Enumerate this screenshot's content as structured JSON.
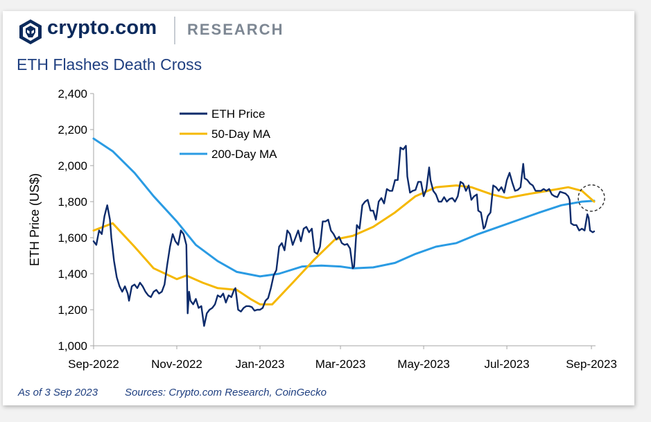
{
  "header": {
    "brand": "crypto.com",
    "section": "RESEARCH",
    "logo_icon": "crypto-com-lion-shield-icon"
  },
  "colors": {
    "eth_price": "#0d2b6b",
    "ma50": "#f5b800",
    "ma200": "#2a9be3",
    "axis": "#a6a6a6",
    "title": "#1f3f80"
  },
  "footer": {
    "as_of": "As of 3 Sep 2023",
    "sources": "Sources: Crypto.com Research, CoinGecko"
  },
  "chart_data": {
    "type": "line",
    "title": "ETH Flashes Death Cross",
    "ylabel": "ETH Price (US$)",
    "xlabel": "",
    "ylim": [
      1000,
      2400
    ],
    "yticks": [
      "1,000",
      "1,200",
      "1,400",
      "1,600",
      "1,800",
      "2,000",
      "2,200",
      "2,400"
    ],
    "xlim": [
      "2022-09-01",
      "2023-09-03"
    ],
    "xticks": [
      {
        "date": "2022-09-01",
        "label": "Sep-2022"
      },
      {
        "date": "2022-11-01",
        "label": "Nov-2022"
      },
      {
        "date": "2023-01-01",
        "label": "Jan-2023"
      },
      {
        "date": "2023-03-01",
        "label": "Mar-2023"
      },
      {
        "date": "2023-05-01",
        "label": "May-2023"
      },
      {
        "date": "2023-07-01",
        "label": "Jul-2023"
      },
      {
        "date": "2023-09-01",
        "label": "Sep-2023"
      }
    ],
    "grid": false,
    "legend_position": "top-left",
    "annotation": "dashed circle marking death cross at end of Aug 2023",
    "annotation_date": "2023-09-01",
    "annotation_value": 1820,
    "series": [
      {
        "name": "ETH Price",
        "points": [
          [
            "2022-09-01",
            1580
          ],
          [
            "2022-09-03",
            1560
          ],
          [
            "2022-09-05",
            1640
          ],
          [
            "2022-09-07",
            1620
          ],
          [
            "2022-09-09",
            1720
          ],
          [
            "2022-09-11",
            1780
          ],
          [
            "2022-09-13",
            1700
          ],
          [
            "2022-09-14",
            1600
          ],
          [
            "2022-09-16",
            1470
          ],
          [
            "2022-09-18",
            1380
          ],
          [
            "2022-09-20",
            1330
          ],
          [
            "2022-09-22",
            1300
          ],
          [
            "2022-09-24",
            1330
          ],
          [
            "2022-09-26",
            1290
          ],
          [
            "2022-09-27",
            1250
          ],
          [
            "2022-09-29",
            1330
          ],
          [
            "2022-10-01",
            1340
          ],
          [
            "2022-10-03",
            1320
          ],
          [
            "2022-10-05",
            1350
          ],
          [
            "2022-10-07",
            1330
          ],
          [
            "2022-10-09",
            1300
          ],
          [
            "2022-10-11",
            1280
          ],
          [
            "2022-10-13",
            1270
          ],
          [
            "2022-10-15",
            1300
          ],
          [
            "2022-10-17",
            1310
          ],
          [
            "2022-10-19",
            1290
          ],
          [
            "2022-10-21",
            1300
          ],
          [
            "2022-10-23",
            1340
          ],
          [
            "2022-10-25",
            1450
          ],
          [
            "2022-10-27",
            1550
          ],
          [
            "2022-10-29",
            1620
          ],
          [
            "2022-10-31",
            1580
          ],
          [
            "2022-11-02",
            1560
          ],
          [
            "2022-11-04",
            1640
          ],
          [
            "2022-11-06",
            1620
          ],
          [
            "2022-11-08",
            1560
          ],
          [
            "2022-11-09",
            1180
          ],
          [
            "2022-11-10",
            1300
          ],
          [
            "2022-11-11",
            1250
          ],
          [
            "2022-11-13",
            1230
          ],
          [
            "2022-11-15",
            1260
          ],
          [
            "2022-11-17",
            1210
          ],
          [
            "2022-11-19",
            1220
          ],
          [
            "2022-11-21",
            1110
          ],
          [
            "2022-11-23",
            1180
          ],
          [
            "2022-11-25",
            1200
          ],
          [
            "2022-11-27",
            1210
          ],
          [
            "2022-11-29",
            1230
          ],
          [
            "2022-12-01",
            1280
          ],
          [
            "2022-12-03",
            1270
          ],
          [
            "2022-12-05",
            1290
          ],
          [
            "2022-12-07",
            1240
          ],
          [
            "2022-12-09",
            1280
          ],
          [
            "2022-12-11",
            1270
          ],
          [
            "2022-12-13",
            1310
          ],
          [
            "2022-12-14",
            1320
          ],
          [
            "2022-12-16",
            1200
          ],
          [
            "2022-12-18",
            1190
          ],
          [
            "2022-12-20",
            1210
          ],
          [
            "2022-12-22",
            1220
          ],
          [
            "2022-12-24",
            1220
          ],
          [
            "2022-12-26",
            1215
          ],
          [
            "2022-12-28",
            1195
          ],
          [
            "2022-12-30",
            1200
          ],
          [
            "2023-01-01",
            1200
          ],
          [
            "2023-01-03",
            1210
          ],
          [
            "2023-01-05",
            1250
          ],
          [
            "2023-01-07",
            1265
          ],
          [
            "2023-01-09",
            1320
          ],
          [
            "2023-01-11",
            1390
          ],
          [
            "2023-01-13",
            1420
          ],
          [
            "2023-01-15",
            1550
          ],
          [
            "2023-01-17",
            1570
          ],
          [
            "2023-01-19",
            1530
          ],
          [
            "2023-01-21",
            1640
          ],
          [
            "2023-01-23",
            1620
          ],
          [
            "2023-01-25",
            1560
          ],
          [
            "2023-01-27",
            1600
          ],
          [
            "2023-01-29",
            1640
          ],
          [
            "2023-01-31",
            1580
          ],
          [
            "2023-02-02",
            1650
          ],
          [
            "2023-02-04",
            1660
          ],
          [
            "2023-02-06",
            1630
          ],
          [
            "2023-02-08",
            1650
          ],
          [
            "2023-02-10",
            1520
          ],
          [
            "2023-02-12",
            1510
          ],
          [
            "2023-02-14",
            1550
          ],
          [
            "2023-02-16",
            1690
          ],
          [
            "2023-02-18",
            1690
          ],
          [
            "2023-02-20",
            1700
          ],
          [
            "2023-02-22",
            1640
          ],
          [
            "2023-02-24",
            1620
          ],
          [
            "2023-02-26",
            1590
          ],
          [
            "2023-02-28",
            1605
          ],
          [
            "2023-03-02",
            1570
          ],
          [
            "2023-03-04",
            1560
          ],
          [
            "2023-03-06",
            1565
          ],
          [
            "2023-03-08",
            1540
          ],
          [
            "2023-03-10",
            1430
          ],
          [
            "2023-03-11",
            1440
          ],
          [
            "2023-03-13",
            1670
          ],
          [
            "2023-03-15",
            1650
          ],
          [
            "2023-03-17",
            1780
          ],
          [
            "2023-03-19",
            1800
          ],
          [
            "2023-03-21",
            1810
          ],
          [
            "2023-03-23",
            1750
          ],
          [
            "2023-03-25",
            1750
          ],
          [
            "2023-03-27",
            1700
          ],
          [
            "2023-03-29",
            1800
          ],
          [
            "2023-03-31",
            1820
          ],
          [
            "2023-04-02",
            1790
          ],
          [
            "2023-04-04",
            1870
          ],
          [
            "2023-04-06",
            1860
          ],
          [
            "2023-04-08",
            1860
          ],
          [
            "2023-04-10",
            1920
          ],
          [
            "2023-04-12",
            1920
          ],
          [
            "2023-04-13",
            2010
          ],
          [
            "2023-04-14",
            2100
          ],
          [
            "2023-04-16",
            2090
          ],
          [
            "2023-04-18",
            2110
          ],
          [
            "2023-04-19",
            1940
          ],
          [
            "2023-04-21",
            1850
          ],
          [
            "2023-04-23",
            1860
          ],
          [
            "2023-04-25",
            1865
          ],
          [
            "2023-04-27",
            1910
          ],
          [
            "2023-04-29",
            1910
          ],
          [
            "2023-05-01",
            1830
          ],
          [
            "2023-05-03",
            1870
          ],
          [
            "2023-05-05",
            1990
          ],
          [
            "2023-05-06",
            1920
          ],
          [
            "2023-05-08",
            1860
          ],
          [
            "2023-05-10",
            1840
          ],
          [
            "2023-05-12",
            1800
          ],
          [
            "2023-05-14",
            1800
          ],
          [
            "2023-05-16",
            1825
          ],
          [
            "2023-05-18",
            1800
          ],
          [
            "2023-05-20",
            1815
          ],
          [
            "2023-05-22",
            1820
          ],
          [
            "2023-05-24",
            1800
          ],
          [
            "2023-05-26",
            1830
          ],
          [
            "2023-05-28",
            1910
          ],
          [
            "2023-05-30",
            1900
          ],
          [
            "2023-06-01",
            1860
          ],
          [
            "2023-06-03",
            1890
          ],
          [
            "2023-06-05",
            1810
          ],
          [
            "2023-06-07",
            1830
          ],
          [
            "2023-06-09",
            1840
          ],
          [
            "2023-06-10",
            1750
          ],
          [
            "2023-06-12",
            1740
          ],
          [
            "2023-06-14",
            1650
          ],
          [
            "2023-06-15",
            1660
          ],
          [
            "2023-06-17",
            1720
          ],
          [
            "2023-06-19",
            1740
          ],
          [
            "2023-06-21",
            1890
          ],
          [
            "2023-06-23",
            1880
          ],
          [
            "2023-06-25",
            1860
          ],
          [
            "2023-06-27",
            1880
          ],
          [
            "2023-06-29",
            1850
          ],
          [
            "2023-07-01",
            1920
          ],
          [
            "2023-07-03",
            1960
          ],
          [
            "2023-07-05",
            1905
          ],
          [
            "2023-07-07",
            1860
          ],
          [
            "2023-07-09",
            1865
          ],
          [
            "2023-07-11",
            1880
          ],
          [
            "2023-07-13",
            2010
          ],
          [
            "2023-07-14",
            1930
          ],
          [
            "2023-07-16",
            1920
          ],
          [
            "2023-07-18",
            1900
          ],
          [
            "2023-07-20",
            1890
          ],
          [
            "2023-07-22",
            1860
          ],
          [
            "2023-07-24",
            1860
          ],
          [
            "2023-07-26",
            1860
          ],
          [
            "2023-07-28",
            1870
          ],
          [
            "2023-07-30",
            1860
          ],
          [
            "2023-08-01",
            1870
          ],
          [
            "2023-08-03",
            1840
          ],
          [
            "2023-08-05",
            1830
          ],
          [
            "2023-08-07",
            1825
          ],
          [
            "2023-08-09",
            1855
          ],
          [
            "2023-08-11",
            1850
          ],
          [
            "2023-08-13",
            1845
          ],
          [
            "2023-08-15",
            1830
          ],
          [
            "2023-08-16",
            1810
          ],
          [
            "2023-08-17",
            1680
          ],
          [
            "2023-08-19",
            1670
          ],
          [
            "2023-08-21",
            1670
          ],
          [
            "2023-08-23",
            1640
          ],
          [
            "2023-08-25",
            1650
          ],
          [
            "2023-08-27",
            1640
          ],
          [
            "2023-08-29",
            1730
          ],
          [
            "2023-08-30",
            1710
          ],
          [
            "2023-08-31",
            1640
          ],
          [
            "2023-09-02",
            1630
          ],
          [
            "2023-09-03",
            1635
          ]
        ]
      },
      {
        "name": "50-Day MA",
        "points": [
          [
            "2022-09-01",
            1640
          ],
          [
            "2022-09-15",
            1680
          ],
          [
            "2022-10-01",
            1550
          ],
          [
            "2022-10-15",
            1430
          ],
          [
            "2022-11-01",
            1370
          ],
          [
            "2022-11-08",
            1390
          ],
          [
            "2022-11-20",
            1350
          ],
          [
            "2022-12-01",
            1320
          ],
          [
            "2022-12-15",
            1310
          ],
          [
            "2022-12-25",
            1260
          ],
          [
            "2023-01-01",
            1230
          ],
          [
            "2023-01-10",
            1230
          ],
          [
            "2023-01-25",
            1350
          ],
          [
            "2023-02-10",
            1480
          ],
          [
            "2023-02-25",
            1590
          ],
          [
            "2023-03-10",
            1610
          ],
          [
            "2023-03-25",
            1660
          ],
          [
            "2023-04-10",
            1740
          ],
          [
            "2023-04-25",
            1830
          ],
          [
            "2023-05-10",
            1880
          ],
          [
            "2023-05-25",
            1890
          ],
          [
            "2023-06-05",
            1880
          ],
          [
            "2023-06-20",
            1840
          ],
          [
            "2023-07-01",
            1820
          ],
          [
            "2023-07-15",
            1840
          ],
          [
            "2023-07-31",
            1860
          ],
          [
            "2023-08-15",
            1880
          ],
          [
            "2023-08-25",
            1860
          ],
          [
            "2023-09-03",
            1800
          ]
        ]
      },
      {
        "name": "200-Day MA",
        "points": [
          [
            "2022-09-01",
            2150
          ],
          [
            "2022-09-15",
            2080
          ],
          [
            "2022-10-01",
            1960
          ],
          [
            "2022-10-15",
            1830
          ],
          [
            "2022-11-01",
            1690
          ],
          [
            "2022-11-15",
            1560
          ],
          [
            "2022-12-01",
            1470
          ],
          [
            "2022-12-15",
            1410
          ],
          [
            "2023-01-01",
            1385
          ],
          [
            "2023-01-15",
            1400
          ],
          [
            "2023-02-01",
            1440
          ],
          [
            "2023-02-15",
            1445
          ],
          [
            "2023-03-01",
            1440
          ],
          [
            "2023-03-10",
            1430
          ],
          [
            "2023-03-25",
            1435
          ],
          [
            "2023-04-10",
            1460
          ],
          [
            "2023-04-25",
            1510
          ],
          [
            "2023-05-10",
            1550
          ],
          [
            "2023-05-25",
            1570
          ],
          [
            "2023-06-10",
            1620
          ],
          [
            "2023-06-25",
            1660
          ],
          [
            "2023-07-10",
            1700
          ],
          [
            "2023-07-25",
            1740
          ],
          [
            "2023-08-10",
            1780
          ],
          [
            "2023-08-25",
            1800
          ],
          [
            "2023-09-03",
            1805
          ]
        ]
      }
    ]
  }
}
